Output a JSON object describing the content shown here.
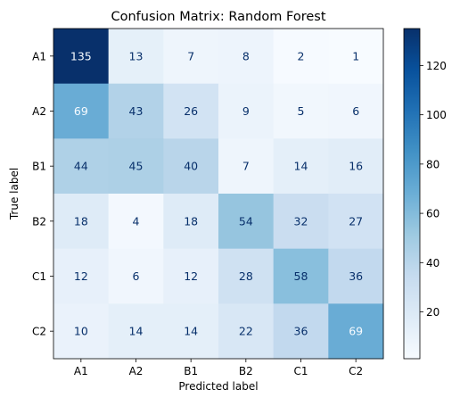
{
  "chart_data": {
    "type": "heatmap",
    "title": "Confusion Matrix: Random Forest",
    "xlabel": "Predicted label",
    "ylabel": "True label",
    "x_categories": [
      "A1",
      "A2",
      "B1",
      "B2",
      "C1",
      "C2"
    ],
    "y_categories": [
      "A1",
      "A2",
      "B1",
      "B2",
      "C1",
      "C2"
    ],
    "values": [
      [
        135,
        13,
        7,
        8,
        2,
        1
      ],
      [
        69,
        43,
        26,
        9,
        5,
        6
      ],
      [
        44,
        45,
        40,
        7,
        14,
        16
      ],
      [
        18,
        4,
        18,
        54,
        32,
        27
      ],
      [
        12,
        6,
        12,
        28,
        58,
        36
      ],
      [
        10,
        14,
        14,
        22,
        36,
        69
      ]
    ],
    "colormap": "Blues",
    "colorbar": {
      "range": [
        1,
        135
      ],
      "ticks": [
        20,
        40,
        60,
        80,
        100,
        120
      ],
      "tick_labels": [
        "20",
        "40",
        "60",
        "80",
        "100",
        "120"
      ]
    },
    "grid": false
  }
}
